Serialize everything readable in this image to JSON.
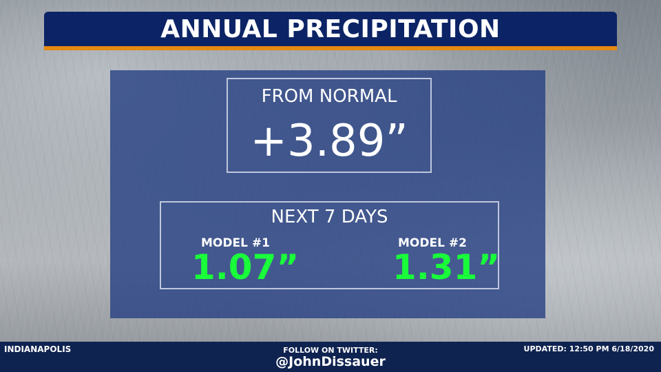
{
  "header": {
    "title": "ANNUAL PRECIPITATION"
  },
  "from_normal": {
    "label": "FROM NORMAL",
    "value": "+3.89”"
  },
  "next_days": {
    "label": "NEXT 7 DAYS",
    "models": [
      {
        "name": "MODEL #1",
        "value": "1.07”"
      },
      {
        "name": "MODEL #2",
        "value": "1.31”"
      }
    ]
  },
  "footer": {
    "city": "INDIANAPOLIS",
    "follow_label": "FOLLOW ON TWITTER:",
    "handle": "@JohnDissauer",
    "updated": "UPDATED: 12:50 PM 6/18/2020"
  },
  "colors": {
    "title_bar": "#0c2466",
    "accent": "#e58a12",
    "panel": "#223e82",
    "model_value": "#19ff3a",
    "footer": "#0f2350"
  }
}
